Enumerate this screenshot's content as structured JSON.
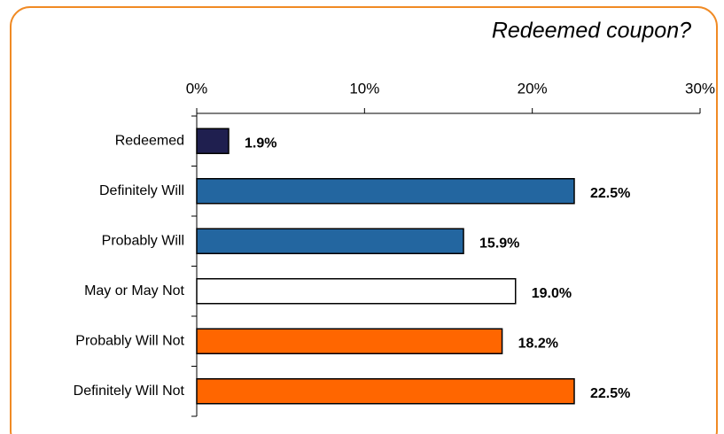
{
  "chart_data": {
    "type": "bar",
    "orientation": "horizontal",
    "title": "Redeemed coupon?",
    "categories": [
      "Redeemed",
      "Definitely Will",
      "Probably Will",
      "May or May Not",
      "Probably Will Not",
      "Definitely Will Not"
    ],
    "values": [
      1.9,
      22.5,
      15.9,
      19.0,
      18.2,
      22.5
    ],
    "value_labels": [
      "1.9%",
      "22.5%",
      "15.9%",
      "19.0%",
      "18.2%",
      "22.5%"
    ],
    "colors": [
      "#1f1f4f",
      "#2366a0",
      "#2366a0",
      "#ffffff",
      "#ff6600",
      "#ff6600"
    ],
    "xlim": [
      0,
      30
    ],
    "xticks": [
      {
        "value": 0,
        "label": "0%"
      },
      {
        "value": 10,
        "label": "10%"
      },
      {
        "value": 20,
        "label": "20%"
      },
      {
        "value": 30,
        "label": "30%"
      }
    ],
    "grid": false
  }
}
